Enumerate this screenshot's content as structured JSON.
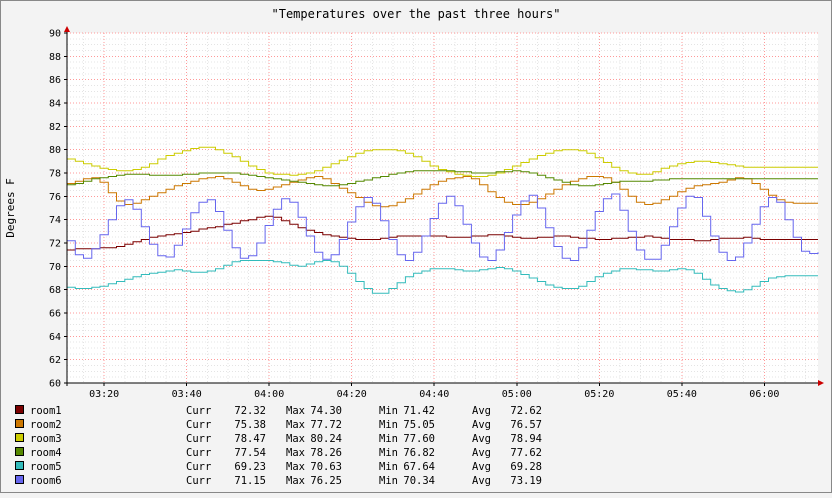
{
  "chart_data": {
    "type": "line",
    "title": "\"Temperatures over the past three hours\"",
    "ylabel": "Degrees F",
    "xlabel": "",
    "ylim": [
      60,
      90
    ],
    "yticks": [
      60,
      62,
      64,
      66,
      68,
      70,
      72,
      74,
      76,
      78,
      80,
      82,
      84,
      86,
      88,
      90
    ],
    "xticks": [
      "03:20",
      "03:40",
      "04:00",
      "04:20",
      "04:40",
      "05:00",
      "05:20",
      "05:40",
      "06:00"
    ],
    "xrange_minutes": [
      191,
      373
    ],
    "grid": true,
    "legend_placement": "bottom",
    "x": [
      191,
      193,
      195,
      197,
      199,
      201,
      203,
      205,
      207,
      209,
      211,
      213,
      215,
      217,
      219,
      221,
      223,
      225,
      227,
      229,
      231,
      233,
      235,
      237,
      239,
      241,
      243,
      245,
      247,
      249,
      251,
      253,
      255,
      257,
      259,
      261,
      263,
      265,
      267,
      269,
      271,
      273,
      275,
      277,
      279,
      281,
      283,
      285,
      287,
      289,
      291,
      293,
      295,
      297,
      299,
      301,
      303,
      305,
      307,
      309,
      311,
      313,
      315,
      317,
      319,
      321,
      323,
      325,
      327,
      329,
      331,
      333,
      335,
      337,
      339,
      341,
      343,
      345,
      347,
      349,
      351,
      353,
      355,
      357,
      359,
      361,
      363,
      365,
      367,
      369,
      371,
      373
    ],
    "series": [
      {
        "name": "room1",
        "color": "#7a0000",
        "curr": "72.32",
        "max": "74.30",
        "min": "71.42",
        "avg": "72.62",
        "values": [
          71.4,
          71.5,
          71.5,
          71.5,
          71.6,
          71.6,
          71.7,
          71.9,
          72.1,
          72.3,
          72.5,
          72.6,
          72.7,
          72.8,
          72.9,
          73.0,
          73.2,
          73.3,
          73.4,
          73.6,
          73.7,
          73.9,
          74.0,
          74.2,
          74.3,
          74.2,
          73.9,
          73.6,
          73.3,
          73.1,
          72.9,
          72.7,
          72.6,
          72.5,
          72.4,
          72.3,
          72.3,
          72.3,
          72.4,
          72.5,
          72.6,
          72.6,
          72.6,
          72.6,
          72.6,
          72.6,
          72.5,
          72.5,
          72.5,
          72.6,
          72.6,
          72.7,
          72.7,
          72.6,
          72.5,
          72.4,
          72.4,
          72.5,
          72.5,
          72.6,
          72.6,
          72.5,
          72.4,
          72.4,
          72.3,
          72.3,
          72.4,
          72.4,
          72.5,
          72.5,
          72.6,
          72.5,
          72.4,
          72.3,
          72.3,
          72.3,
          72.2,
          72.2,
          72.3,
          72.4,
          72.4,
          72.4,
          72.5,
          72.4,
          72.3,
          72.3,
          72.3,
          72.3,
          72.3,
          72.3,
          72.3,
          72.3
        ]
      },
      {
        "name": "room2",
        "color": "#cc7700",
        "curr": "75.38",
        "max": "77.72",
        "min": "75.05",
        "avg": "76.57",
        "values": [
          77.1,
          77.3,
          77.5,
          77.6,
          77.2,
          76.3,
          75.6,
          75.3,
          75.4,
          75.7,
          76.0,
          76.3,
          76.6,
          76.9,
          77.1,
          77.3,
          77.5,
          77.6,
          77.7,
          77.5,
          77.2,
          76.9,
          76.6,
          76.5,
          76.6,
          76.8,
          77.0,
          77.2,
          77.4,
          77.6,
          77.7,
          77.5,
          77.1,
          76.7,
          76.3,
          75.9,
          75.5,
          75.2,
          75.1,
          75.2,
          75.5,
          75.8,
          76.2,
          76.6,
          77.0,
          77.3,
          77.5,
          77.6,
          77.7,
          77.5,
          77.0,
          76.4,
          75.9,
          75.5,
          75.3,
          75.3,
          75.5,
          75.8,
          76.2,
          76.6,
          77.0,
          77.3,
          77.5,
          77.7,
          77.7,
          77.6,
          77.2,
          76.6,
          76.0,
          75.5,
          75.3,
          75.4,
          75.7,
          76.0,
          76.4,
          76.7,
          76.9,
          77.0,
          77.1,
          77.2,
          77.4,
          77.6,
          77.5,
          77.1,
          76.6,
          76.1,
          75.7,
          75.5,
          75.4,
          75.4,
          75.4,
          75.4
        ]
      },
      {
        "name": "room3",
        "color": "#cccc00",
        "curr": "78.47",
        "max": "80.24",
        "min": "77.60",
        "avg": "78.94",
        "values": [
          79.2,
          79.0,
          78.8,
          78.6,
          78.4,
          78.3,
          78.2,
          78.2,
          78.3,
          78.5,
          78.8,
          79.2,
          79.5,
          79.7,
          79.9,
          80.1,
          80.2,
          80.2,
          80.0,
          79.7,
          79.4,
          79.0,
          78.6,
          78.3,
          78.0,
          77.9,
          77.9,
          77.8,
          77.9,
          78.0,
          78.2,
          78.5,
          78.8,
          79.1,
          79.4,
          79.7,
          79.9,
          80.0,
          80.0,
          80.0,
          79.9,
          79.7,
          79.4,
          79.0,
          78.6,
          78.3,
          78.1,
          77.9,
          77.8,
          77.7,
          77.7,
          77.8,
          78.0,
          78.3,
          78.6,
          78.9,
          79.2,
          79.5,
          79.7,
          79.9,
          80.0,
          80.0,
          79.9,
          79.7,
          79.3,
          78.9,
          78.5,
          78.2,
          78.0,
          77.9,
          77.9,
          78.1,
          78.4,
          78.6,
          78.8,
          78.9,
          79.0,
          79.0,
          78.9,
          78.8,
          78.7,
          78.6,
          78.5,
          78.5,
          78.5,
          78.5,
          78.5,
          78.5,
          78.5,
          78.5,
          78.5,
          78.5
        ]
      },
      {
        "name": "room4",
        "color": "#558800",
        "curr": "77.54",
        "max": "78.26",
        "min": "76.82",
        "avg": "77.62",
        "values": [
          77.0,
          77.1,
          77.3,
          77.5,
          77.6,
          77.7,
          77.8,
          77.9,
          77.9,
          77.9,
          77.8,
          77.8,
          77.8,
          77.8,
          77.9,
          77.9,
          78.0,
          78.0,
          78.0,
          78.0,
          78.0,
          77.9,
          77.8,
          77.7,
          77.6,
          77.5,
          77.4,
          77.3,
          77.2,
          77.1,
          77.0,
          76.9,
          76.9,
          77.0,
          77.1,
          77.3,
          77.4,
          77.6,
          77.7,
          77.9,
          78.0,
          78.1,
          78.2,
          78.2,
          78.2,
          78.2,
          78.2,
          78.1,
          78.1,
          78.0,
          78.0,
          78.0,
          78.1,
          78.1,
          78.2,
          78.1,
          78.0,
          77.8,
          77.6,
          77.4,
          77.2,
          77.0,
          76.9,
          76.9,
          77.0,
          77.1,
          77.2,
          77.3,
          77.3,
          77.3,
          77.3,
          77.4,
          77.4,
          77.5,
          77.5,
          77.5,
          77.5,
          77.5,
          77.5,
          77.5,
          77.5,
          77.5,
          77.5,
          77.5,
          77.5,
          77.5,
          77.5,
          77.5,
          77.5,
          77.5,
          77.5,
          77.5
        ]
      },
      {
        "name": "room5",
        "color": "#33bbbb",
        "curr": "69.23",
        "max": "70.63",
        "min": "67.64",
        "avg": "69.28",
        "values": [
          68.2,
          68.1,
          68.1,
          68.2,
          68.3,
          68.5,
          68.7,
          68.9,
          69.1,
          69.3,
          69.4,
          69.5,
          69.6,
          69.7,
          69.6,
          69.5,
          69.5,
          69.6,
          69.8,
          70.1,
          70.4,
          70.5,
          70.5,
          70.5,
          70.5,
          70.4,
          70.3,
          70.1,
          70.0,
          70.2,
          70.4,
          70.5,
          70.4,
          70.0,
          69.4,
          68.7,
          68.1,
          67.7,
          67.7,
          68.1,
          68.6,
          69.1,
          69.4,
          69.6,
          69.8,
          69.8,
          69.8,
          69.7,
          69.6,
          69.6,
          69.7,
          69.8,
          69.9,
          69.8,
          69.6,
          69.3,
          69.0,
          68.7,
          68.4,
          68.2,
          68.1,
          68.1,
          68.3,
          68.7,
          69.1,
          69.4,
          69.6,
          69.8,
          69.8,
          69.7,
          69.7,
          69.6,
          69.6,
          69.7,
          69.8,
          69.7,
          69.4,
          68.9,
          68.4,
          68.1,
          67.9,
          67.8,
          68.0,
          68.3,
          68.7,
          69.0,
          69.1,
          69.2,
          69.2,
          69.2,
          69.2,
          69.2
        ]
      },
      {
        "name": "room6",
        "color": "#6666ee",
        "curr": "71.15",
        "max": "76.25",
        "min": "70.34",
        "avg": "73.19",
        "values": [
          72.2,
          71.0,
          70.7,
          71.5,
          72.7,
          74.0,
          75.2,
          75.7,
          74.9,
          73.4,
          71.9,
          70.9,
          70.8,
          71.8,
          73.2,
          74.6,
          75.5,
          75.7,
          74.7,
          73.1,
          71.6,
          70.7,
          70.9,
          72.0,
          73.5,
          74.9,
          75.8,
          75.5,
          74.2,
          72.6,
          71.2,
          70.6,
          71.0,
          72.3,
          73.8,
          75.1,
          75.9,
          75.4,
          73.9,
          72.3,
          71.0,
          70.5,
          71.2,
          72.6,
          74.1,
          75.4,
          76.0,
          75.2,
          73.6,
          72.0,
          70.8,
          70.5,
          71.4,
          72.9,
          74.4,
          75.6,
          76.1,
          75.0,
          73.3,
          71.7,
          70.7,
          70.5,
          71.6,
          73.1,
          74.7,
          75.8,
          76.2,
          74.8,
          73.0,
          71.4,
          70.6,
          70.6,
          71.8,
          73.4,
          75.0,
          76.0,
          75.9,
          74.3,
          72.6,
          71.2,
          70.5,
          70.8,
          72.0,
          73.6,
          75.1,
          75.9,
          75.5,
          74.0,
          72.5,
          71.3,
          71.1,
          71.2
        ]
      }
    ]
  },
  "legend_labels": {
    "curr": "Curr",
    "max": "Max",
    "min": "Min",
    "avg": "Avg"
  }
}
